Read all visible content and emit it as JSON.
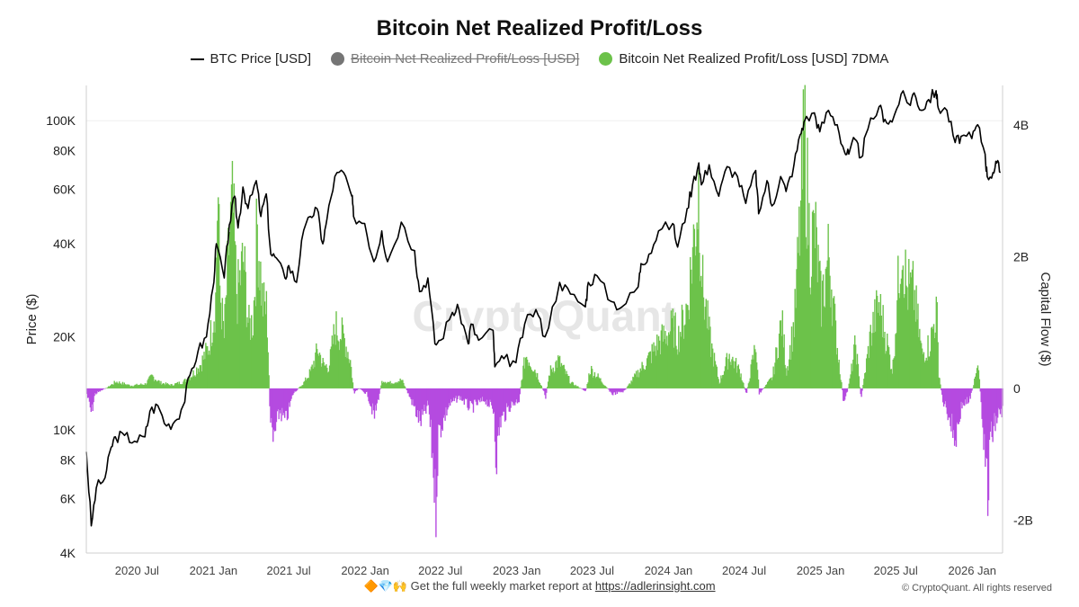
{
  "chart_data": {
    "type": "bar",
    "title": "Bitcoin Net Realized Profit/Loss",
    "legend": [
      {
        "name": "BTC Price [USD]",
        "marker": "line",
        "color": "#000000",
        "hidden": false
      },
      {
        "name": "Bitcoin Net Realized Profit/Loss [USD]",
        "marker": "dot",
        "color": "#757575",
        "hidden": true
      },
      {
        "name": "Bitcoin Net Realized Profit/Loss [USD] 7DMA",
        "marker": "dot",
        "color": "#6cc24a",
        "hidden": false
      }
    ],
    "y_left_label": "Price ($)",
    "y_right_label": "Capital Flow ($)",
    "y_left_scale": "log",
    "y_left_range": [
      4000,
      130000
    ],
    "y_left_ticks": [
      {
        "v": 4000,
        "label": "4K"
      },
      {
        "v": 6000,
        "label": "6K"
      },
      {
        "v": 8000,
        "label": "8K"
      },
      {
        "v": 10000,
        "label": "10K"
      },
      {
        "v": 20000,
        "label": "20K"
      },
      {
        "v": 40000,
        "label": "40K"
      },
      {
        "v": 60000,
        "label": "60K"
      },
      {
        "v": 80000,
        "label": "80K"
      },
      {
        "v": 100000,
        "label": "100K"
      }
    ],
    "y_right_range": [
      -2.5,
      4.6
    ],
    "y_right_unit": "B",
    "y_right_ticks": [
      {
        "v": -2,
        "label": "-2B"
      },
      {
        "v": 0,
        "label": "0"
      },
      {
        "v": 2,
        "label": "2B"
      },
      {
        "v": 4,
        "label": "4B"
      }
    ],
    "x_range": [
      "2020-03-01",
      "2026-03-15"
    ],
    "x_ticks": [
      {
        "date": "2020-07-01",
        "label": "2020 Jul"
      },
      {
        "date": "2021-01-01",
        "label": "2021 Jan"
      },
      {
        "date": "2021-07-01",
        "label": "2021 Jul"
      },
      {
        "date": "2022-01-01",
        "label": "2022 Jan"
      },
      {
        "date": "2022-07-01",
        "label": "2022 Jul"
      },
      {
        "date": "2023-01-01",
        "label": "2023 Jan"
      },
      {
        "date": "2023-07-01",
        "label": "2023 Jul"
      },
      {
        "date": "2024-01-01",
        "label": "2024 Jan"
      },
      {
        "date": "2024-07-01",
        "label": "2024 Jul"
      },
      {
        "date": "2025-01-01",
        "label": "2025 Jan"
      },
      {
        "date": "2025-07-01",
        "label": "2025 Jul"
      },
      {
        "date": "2026-01-01",
        "label": "2026 Jan"
      }
    ],
    "colors": {
      "profit": "#6cc24a",
      "loss": "#b54be0",
      "price": "#000000"
    },
    "price_series": [
      [
        "2020-03-01",
        8500
      ],
      [
        "2020-03-13",
        4900
      ],
      [
        "2020-03-25",
        6500
      ],
      [
        "2020-04-15",
        7000
      ],
      [
        "2020-04-30",
        8800
      ],
      [
        "2020-05-10",
        9500
      ],
      [
        "2020-06-01",
        9600
      ],
      [
        "2020-06-25",
        9200
      ],
      [
        "2020-07-20",
        9500
      ],
      [
        "2020-08-01",
        11500
      ],
      [
        "2020-08-20",
        12000
      ],
      [
        "2020-09-10",
        10300
      ],
      [
        "2020-10-01",
        10700
      ],
      [
        "2020-10-20",
        12000
      ],
      [
        "2020-11-05",
        15000
      ],
      [
        "2020-11-25",
        18000
      ],
      [
        "2020-12-15",
        20000
      ],
      [
        "2020-12-31",
        29000
      ],
      [
        "2021-01-08",
        40000
      ],
      [
        "2021-01-27",
        31000
      ],
      [
        "2021-02-08",
        46000
      ],
      [
        "2021-02-21",
        57000
      ],
      [
        "2021-03-01",
        45000
      ],
      [
        "2021-03-13",
        61000
      ],
      [
        "2021-03-25",
        52000
      ],
      [
        "2021-04-14",
        64000
      ],
      [
        "2021-04-25",
        49000
      ],
      [
        "2021-05-08",
        58000
      ],
      [
        "2021-05-19",
        37000
      ],
      [
        "2021-06-01",
        36000
      ],
      [
        "2021-06-22",
        31000
      ],
      [
        "2021-07-01",
        34000
      ],
      [
        "2021-07-20",
        30000
      ],
      [
        "2021-08-01",
        41000
      ],
      [
        "2021-08-22",
        49000
      ],
      [
        "2021-09-07",
        52000
      ],
      [
        "2021-09-21",
        40000
      ],
      [
        "2021-10-01",
        48000
      ],
      [
        "2021-10-20",
        66000
      ],
      [
        "2021-11-10",
        68000
      ],
      [
        "2021-11-30",
        57000
      ],
      [
        "2021-12-04",
        49000
      ],
      [
        "2021-12-31",
        46500
      ],
      [
        "2022-01-22",
        35000
      ],
      [
        "2022-02-10",
        44000
      ],
      [
        "2022-02-24",
        35000
      ],
      [
        "2022-03-29",
        47000
      ],
      [
        "2022-04-30",
        38000
      ],
      [
        "2022-05-12",
        28000
      ],
      [
        "2022-06-01",
        31000
      ],
      [
        "2022-06-18",
        19000
      ],
      [
        "2022-07-01",
        19500
      ],
      [
        "2022-07-30",
        24000
      ],
      [
        "2022-08-15",
        24500
      ],
      [
        "2022-09-06",
        19000
      ],
      [
        "2022-09-13",
        22000
      ],
      [
        "2022-10-01",
        19500
      ],
      [
        "2022-11-05",
        21000
      ],
      [
        "2022-11-09",
        16000
      ],
      [
        "2022-12-01",
        17000
      ],
      [
        "2022-12-30",
        16500
      ],
      [
        "2023-01-20",
        22000
      ],
      [
        "2023-02-16",
        24500
      ],
      [
        "2023-03-10",
        20000
      ],
      [
        "2023-04-14",
        30000
      ],
      [
        "2023-05-10",
        27500
      ],
      [
        "2023-06-15",
        25000
      ],
      [
        "2023-06-22",
        30000
      ],
      [
        "2023-07-13",
        31500
      ],
      [
        "2023-08-17",
        26000
      ],
      [
        "2023-09-11",
        25000
      ],
      [
        "2023-10-20",
        29000
      ],
      [
        "2023-10-27",
        34500
      ],
      [
        "2023-11-15",
        37000
      ],
      [
        "2023-12-08",
        44000
      ],
      [
        "2024-01-11",
        46500
      ],
      [
        "2024-01-23",
        39000
      ],
      [
        "2024-02-15",
        52000
      ],
      [
        "2024-02-28",
        62000
      ],
      [
        "2024-03-14",
        73000
      ],
      [
        "2024-03-20",
        62000
      ],
      [
        "2024-04-08",
        72000
      ],
      [
        "2024-05-01",
        57000
      ],
      [
        "2024-05-21",
        71000
      ],
      [
        "2024-06-15",
        66000
      ],
      [
        "2024-07-05",
        54000
      ],
      [
        "2024-07-29",
        69000
      ],
      [
        "2024-08-05",
        50000
      ],
      [
        "2024-08-25",
        64000
      ],
      [
        "2024-09-06",
        53000
      ],
      [
        "2024-09-27",
        66000
      ],
      [
        "2024-10-10",
        59000
      ],
      [
        "2024-10-29",
        72000
      ],
      [
        "2024-11-13",
        90000
      ],
      [
        "2024-11-22",
        99000
      ],
      [
        "2024-12-17",
        106000
      ],
      [
        "2024-12-30",
        92000
      ],
      [
        "2025-01-20",
        108000
      ],
      [
        "2025-02-10",
        97000
      ],
      [
        "2025-02-28",
        79000
      ],
      [
        "2025-03-10",
        78000
      ],
      [
        "2025-03-25",
        87000
      ],
      [
        "2025-04-08",
        76000
      ],
      [
        "2025-04-25",
        94000
      ],
      [
        "2025-05-22",
        111000
      ],
      [
        "2025-06-05",
        101000
      ],
      [
        "2025-06-22",
        99000
      ],
      [
        "2025-07-14",
        122000
      ],
      [
        "2025-08-02",
        113000
      ],
      [
        "2025-08-14",
        123000
      ],
      [
        "2025-09-01",
        108000
      ],
      [
        "2025-09-18",
        117000
      ],
      [
        "2025-10-06",
        125000
      ],
      [
        "2025-10-11",
        110000
      ],
      [
        "2025-11-01",
        108000
      ],
      [
        "2025-11-21",
        85000
      ],
      [
        "2025-12-05",
        89000
      ],
      [
        "2025-12-31",
        87500
      ],
      [
        "2026-01-14",
        97000
      ],
      [
        "2026-02-01",
        78000
      ],
      [
        "2026-02-06",
        66000
      ],
      [
        "2026-02-20",
        68000
      ],
      [
        "2026-03-01",
        73000
      ],
      [
        "2026-03-10",
        68000
      ]
    ],
    "flow_knots": [
      [
        "2020-03-01",
        -0.1
      ],
      [
        "2020-03-12",
        -0.45
      ],
      [
        "2020-03-20",
        -0.1
      ],
      [
        "2020-04-20",
        0.02
      ],
      [
        "2020-05-10",
        0.12
      ],
      [
        "2020-06-15",
        0.05
      ],
      [
        "2020-07-20",
        0.08
      ],
      [
        "2020-08-05",
        0.22
      ],
      [
        "2020-08-25",
        0.1
      ],
      [
        "2020-09-20",
        0.06
      ],
      [
        "2020-10-20",
        0.12
      ],
      [
        "2020-11-10",
        0.25
      ],
      [
        "2020-12-01",
        0.45
      ],
      [
        "2020-12-20",
        0.75
      ],
      [
        "2021-01-05",
        1.6
      ],
      [
        "2021-01-10",
        3.7
      ],
      [
        "2021-01-15",
        1.8
      ],
      [
        "2021-01-25",
        0.9
      ],
      [
        "2021-02-08",
        2.8
      ],
      [
        "2021-02-15",
        3.2
      ],
      [
        "2021-02-25",
        1.6
      ],
      [
        "2021-03-13",
        2.3
      ],
      [
        "2021-03-25",
        1.1
      ],
      [
        "2021-04-05",
        1.2
      ],
      [
        "2021-04-15",
        2.9
      ],
      [
        "2021-04-28",
        1.5
      ],
      [
        "2021-05-08",
        1.4
      ],
      [
        "2021-05-12",
        0.5
      ],
      [
        "2021-05-16",
        -0.5
      ],
      [
        "2021-05-22",
        -1.0
      ],
      [
        "2021-06-08",
        -0.4
      ],
      [
        "2021-06-22",
        -0.6
      ],
      [
        "2021-07-10",
        -0.1
      ],
      [
        "2021-08-05",
        0.1
      ],
      [
        "2021-08-22",
        0.3
      ],
      [
        "2021-09-08",
        0.7
      ],
      [
        "2021-09-22",
        0.4
      ],
      [
        "2021-10-05",
        0.4
      ],
      [
        "2021-10-20",
        1.1
      ],
      [
        "2021-11-10",
        0.9
      ],
      [
        "2021-11-25",
        0.5
      ],
      [
        "2021-12-04",
        -0.1
      ],
      [
        "2021-12-15",
        0.0
      ],
      [
        "2022-01-05",
        -0.1
      ],
      [
        "2022-01-22",
        -0.5
      ],
      [
        "2022-02-10",
        0.15
      ],
      [
        "2022-03-01",
        0.1
      ],
      [
        "2022-03-29",
        0.15
      ],
      [
        "2022-04-20",
        -0.2
      ],
      [
        "2022-05-12",
        -0.6
      ],
      [
        "2022-06-01",
        -0.3
      ],
      [
        "2022-06-13",
        -1.4
      ],
      [
        "2022-06-18",
        -2.2
      ],
      [
        "2022-06-25",
        -0.8
      ],
      [
        "2022-07-20",
        -0.3
      ],
      [
        "2022-08-15",
        -0.15
      ],
      [
        "2022-09-10",
        -0.35
      ],
      [
        "2022-10-15",
        -0.2
      ],
      [
        "2022-11-06",
        -0.4
      ],
      [
        "2022-11-09",
        -1.0
      ],
      [
        "2022-11-12",
        -1.2
      ],
      [
        "2022-11-20",
        -0.6
      ],
      [
        "2022-12-15",
        -0.3
      ],
      [
        "2023-01-05",
        -0.2
      ],
      [
        "2023-01-14",
        0.3
      ],
      [
        "2023-01-22",
        0.6
      ],
      [
        "2023-02-15",
        0.3
      ],
      [
        "2023-03-10",
        -0.15
      ],
      [
        "2023-03-20",
        0.3
      ],
      [
        "2023-04-10",
        0.5
      ],
      [
        "2023-05-10",
        0.1
      ],
      [
        "2023-06-15",
        -0.05
      ],
      [
        "2023-06-25",
        0.35
      ],
      [
        "2023-07-15",
        0.2
      ],
      [
        "2023-08-17",
        -0.1
      ],
      [
        "2023-09-15",
        -0.05
      ],
      [
        "2023-10-20",
        0.3
      ],
      [
        "2023-11-10",
        0.5
      ],
      [
        "2023-12-05",
        0.8
      ],
      [
        "2024-01-11",
        1.1
      ],
      [
        "2024-01-23",
        0.9
      ],
      [
        "2024-02-15",
        1.5
      ],
      [
        "2024-03-05",
        3.0
      ],
      [
        "2024-03-12",
        3.6
      ],
      [
        "2024-03-22",
        1.8
      ],
      [
        "2024-04-10",
        0.8
      ],
      [
        "2024-05-01",
        0.1
      ],
      [
        "2024-05-25",
        0.6
      ],
      [
        "2024-06-20",
        0.3
      ],
      [
        "2024-07-05",
        -0.1
      ],
      [
        "2024-07-28",
        0.8
      ],
      [
        "2024-08-05",
        -0.1
      ],
      [
        "2024-09-06",
        0.2
      ],
      [
        "2024-09-28",
        1.2
      ],
      [
        "2024-10-10",
        0.3
      ],
      [
        "2024-10-29",
        1.2
      ],
      [
        "2024-11-12",
        3.0
      ],
      [
        "2024-11-22",
        4.5
      ],
      [
        "2024-12-05",
        2.5
      ],
      [
        "2024-12-17",
        2.8
      ],
      [
        "2025-01-01",
        1.5
      ],
      [
        "2025-01-20",
        2.4
      ],
      [
        "2025-02-05",
        1.0
      ],
      [
        "2025-02-25",
        -0.3
      ],
      [
        "2025-03-10",
        0.1
      ],
      [
        "2025-03-25",
        0.8
      ],
      [
        "2025-04-07",
        -0.2
      ],
      [
        "2025-05-01",
        1.0
      ],
      [
        "2025-05-20",
        1.5
      ],
      [
        "2025-06-01",
        1.1
      ],
      [
        "2025-06-22",
        0.3
      ],
      [
        "2025-07-14",
        2.8
      ],
      [
        "2025-07-25",
        1.8
      ],
      [
        "2025-08-12",
        1.7
      ],
      [
        "2025-09-01",
        0.6
      ],
      [
        "2025-09-20",
        0.8
      ],
      [
        "2025-10-06",
        1.4
      ],
      [
        "2025-10-11",
        0.3
      ],
      [
        "2025-10-20",
        -0.2
      ],
      [
        "2025-11-01",
        -0.4
      ],
      [
        "2025-11-20",
        -0.9
      ],
      [
        "2025-12-05",
        -0.3
      ],
      [
        "2025-12-25",
        -0.2
      ],
      [
        "2026-01-14",
        0.4
      ],
      [
        "2026-01-25",
        -0.6
      ],
      [
        "2026-02-03",
        -1.6
      ],
      [
        "2026-02-06",
        -2.0
      ],
      [
        "2026-02-12",
        -0.9
      ],
      [
        "2026-03-01",
        -0.5
      ],
      [
        "2026-03-12",
        -0.4
      ]
    ]
  },
  "watermark": "CryptoQuant",
  "footer": {
    "emojis": "🔶💎🙌",
    "text": "Get the full weekly market report at",
    "link": "https://adlerinsight.com"
  },
  "copyright": "© CryptoQuant. All rights reserved"
}
